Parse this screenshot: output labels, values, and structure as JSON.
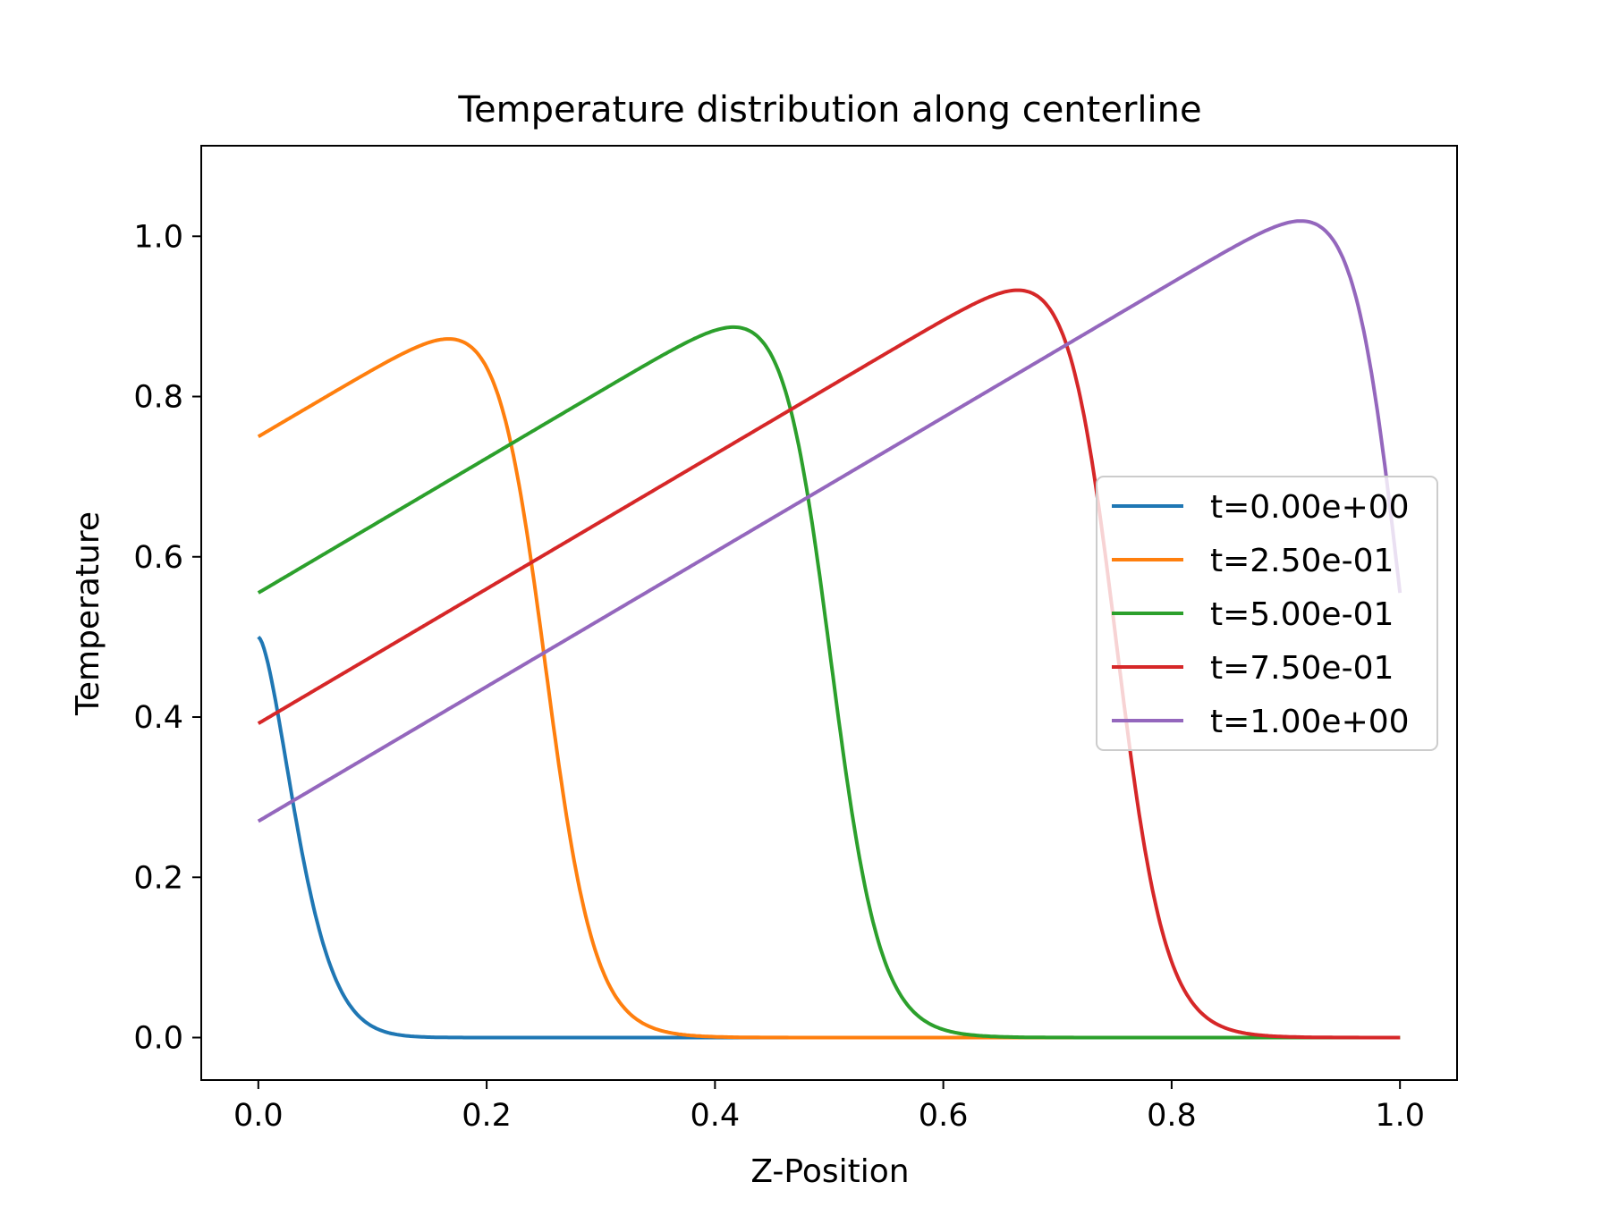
{
  "chart_data": {
    "type": "line",
    "title": "Temperature distribution along centerline",
    "xlabel": "Z-Position",
    "ylabel": "Temperature",
    "xlim": [
      -0.05,
      1.05
    ],
    "ylim": [
      -0.053,
      1.113
    ],
    "xticks": [
      0.0,
      0.2,
      0.4,
      0.6,
      0.8,
      1.0
    ],
    "xtick_labels": [
      "0.0",
      "0.2",
      "0.4",
      "0.6",
      "0.8",
      "1.0"
    ],
    "yticks": [
      0.0,
      0.2,
      0.4,
      0.6,
      0.8,
      1.0
    ],
    "ytick_labels": [
      "0.0",
      "0.2",
      "0.4",
      "0.6",
      "0.8",
      "1.0"
    ],
    "grid": false,
    "legend_position": "center-right",
    "series": [
      {
        "name": "t=0.00e+00",
        "color": "#1f77b4",
        "front_position": 0.0,
        "peak_value": 0.5,
        "slope": 0.0
      },
      {
        "name": "t=2.50e-01",
        "color": "#ff7f0e",
        "front_position": 0.25,
        "peak_value": 0.91,
        "slope": 0.84
      },
      {
        "name": "t=5.00e-01",
        "color": "#2ca02c",
        "front_position": 0.5,
        "peak_value": 0.925,
        "slope": 0.84
      },
      {
        "name": "t=7.50e-01",
        "color": "#d62728",
        "front_position": 0.75,
        "peak_value": 0.972,
        "slope": 0.84
      },
      {
        "name": "t=1.00e+00",
        "color": "#9467bd",
        "front_position": 1.0,
        "peak_value": 1.06,
        "slope": 0.84
      }
    ]
  }
}
